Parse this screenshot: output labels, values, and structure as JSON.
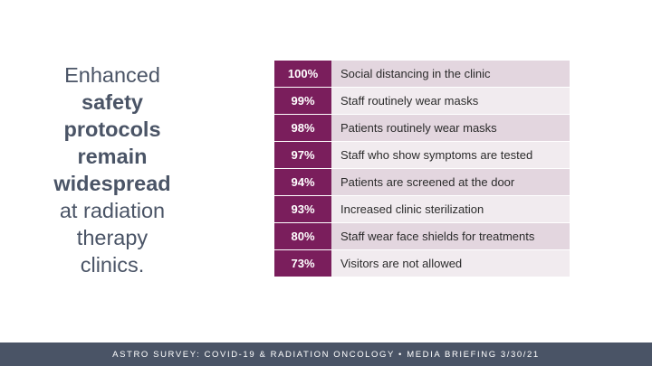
{
  "headline": {
    "lines": [
      {
        "text": "Enhanced",
        "bold": false
      },
      {
        "text": "safety",
        "bold": true
      },
      {
        "text": "protocols",
        "bold": true
      },
      {
        "text": "remain",
        "bold": true
      },
      {
        "text": "widespread",
        "bold": true
      },
      {
        "text": "at radiation",
        "bold": false
      },
      {
        "text": "therapy",
        "bold": false
      },
      {
        "text": "clinics.",
        "bold": false
      }
    ]
  },
  "table": {
    "rows": [
      {
        "percent": "100%",
        "label": "Social distancing in the clinic"
      },
      {
        "percent": "99%",
        "label": "Staff routinely wear masks"
      },
      {
        "percent": "98%",
        "label": "Patients routinely wear masks"
      },
      {
        "percent": "97%",
        "label": "Staff who show symptoms are tested"
      },
      {
        "percent": "94%",
        "label": "Patients are screened at the door"
      },
      {
        "percent": "93%",
        "label": "Increased clinic sterilization"
      },
      {
        "percent": "80%",
        "label": "Staff wear face shields for treatments"
      },
      {
        "percent": "73%",
        "label": "Visitors are not allowed"
      }
    ]
  },
  "footer": {
    "text": "ASTRO SURVEY: COVID-19 & RADIATION ONCOLOGY •  MEDIA BRIEFING 3/30/21"
  },
  "colors": {
    "accent": "#7a1e5c",
    "headline_text": "#4a5466",
    "footer_bg": "#4a5466",
    "row_odd": "#e3d6df",
    "row_even": "#f1ebef"
  }
}
